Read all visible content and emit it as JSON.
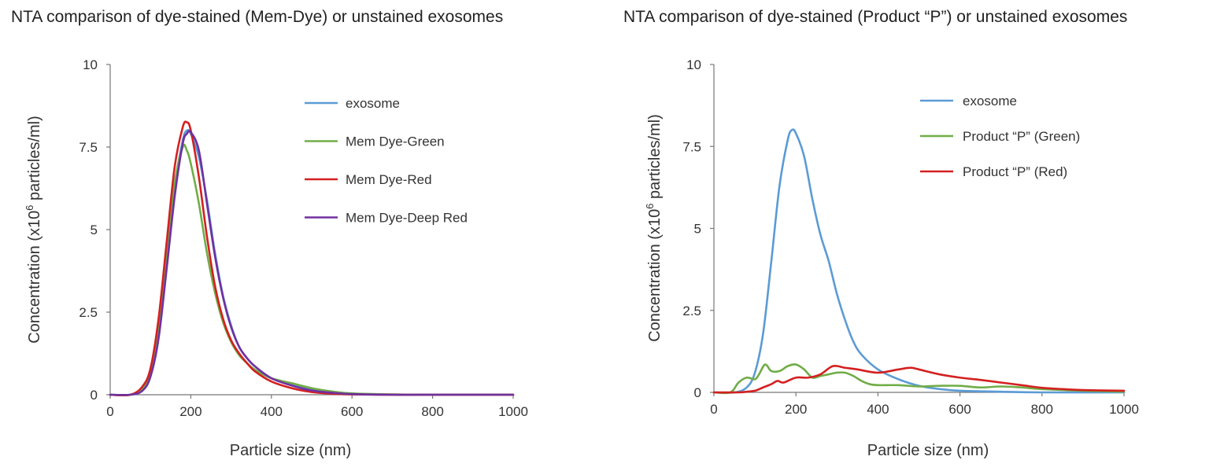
{
  "chart_data": [
    {
      "type": "line",
      "title": "NTA comparison of dye-stained (Mem-Dye) or unstained exosomes",
      "xlabel": "Particle size (nm)",
      "ylabel_parts": [
        "Concentration (x10",
        "6",
        " particles/ml)"
      ],
      "xlim": [
        0,
        1000
      ],
      "ylim": [
        0,
        10
      ],
      "xticks": [
        0,
        200,
        400,
        600,
        800,
        1000
      ],
      "xtick_labels": [
        "0",
        "200",
        "400",
        "600",
        "800",
        "1000"
      ],
      "yticks": [
        0,
        2.5,
        5,
        7.5,
        10
      ],
      "ytick_labels": [
        "0",
        "2.5",
        "5",
        "7.5",
        "10"
      ],
      "grid": false,
      "legend_position": "top-right",
      "series": [
        {
          "name": "exosome",
          "color": "#5b9bd5",
          "x": [
            0,
            50,
            80,
            100,
            120,
            140,
            160,
            180,
            190,
            200,
            220,
            240,
            260,
            280,
            300,
            320,
            340,
            360,
            400,
            450,
            500,
            550,
            600,
            700,
            800,
            1000
          ],
          "y": [
            0,
            0,
            0.15,
            0.6,
            1.8,
            4.0,
            6.3,
            7.7,
            8.0,
            7.9,
            7.2,
            5.9,
            4.3,
            3.0,
            2.1,
            1.45,
            1.1,
            0.85,
            0.5,
            0.3,
            0.15,
            0.08,
            0.03,
            0,
            0,
            0
          ]
        },
        {
          "name": "Mem Dye-Green",
          "color": "#70ad47",
          "x": [
            0,
            50,
            80,
            100,
            120,
            140,
            160,
            180,
            190,
            200,
            220,
            240,
            260,
            280,
            300,
            320,
            340,
            360,
            400,
            450,
            500,
            550,
            600,
            700,
            800,
            1000
          ],
          "y": [
            0,
            0,
            0.2,
            0.75,
            2.1,
            4.3,
            6.4,
            7.5,
            7.4,
            7.0,
            5.8,
            4.3,
            3.1,
            2.2,
            1.6,
            1.2,
            0.95,
            0.75,
            0.5,
            0.35,
            0.2,
            0.1,
            0.04,
            0.01,
            0,
            0
          ]
        },
        {
          "name": "Mem Dye-Red",
          "color": "#d42020",
          "x": [
            0,
            50,
            80,
            100,
            120,
            140,
            160,
            180,
            190,
            200,
            220,
            240,
            260,
            280,
            300,
            320,
            340,
            360,
            400,
            450,
            500,
            550,
            600,
            700,
            800,
            1000
          ],
          "y": [
            0,
            0,
            0.25,
            0.8,
            2.3,
            4.6,
            6.9,
            8.1,
            8.25,
            8.0,
            6.6,
            4.8,
            3.3,
            2.3,
            1.65,
            1.25,
            0.95,
            0.7,
            0.4,
            0.2,
            0.08,
            0.03,
            0.01,
            0,
            0,
            0
          ]
        },
        {
          "name": "Mem Dye-Deep Red",
          "color": "#7030a0",
          "x": [
            0,
            50,
            80,
            100,
            120,
            140,
            160,
            180,
            190,
            200,
            220,
            240,
            260,
            280,
            300,
            320,
            340,
            360,
            400,
            450,
            500,
            550,
            600,
            700,
            800,
            1000
          ],
          "y": [
            0,
            0,
            0.12,
            0.55,
            1.7,
            3.8,
            6.0,
            7.6,
            7.9,
            7.95,
            7.4,
            5.8,
            4.2,
            2.95,
            2.05,
            1.45,
            1.1,
            0.85,
            0.5,
            0.28,
            0.13,
            0.06,
            0.02,
            0,
            0,
            0
          ]
        }
      ]
    },
    {
      "type": "line",
      "title": "NTA comparison of dye-stained (Product “P”) or unstained exosomes",
      "xlabel": "Particle size (nm)",
      "ylabel_parts": [
        "Concentration (x10",
        "6",
        " particles/ml)"
      ],
      "xlim": [
        0,
        1000
      ],
      "ylim": [
        0,
        10
      ],
      "xticks": [
        0,
        200,
        400,
        600,
        800,
        1000
      ],
      "xtick_labels": [
        "0",
        "200",
        "400",
        "600",
        "800",
        "1000"
      ],
      "yticks": [
        0,
        2.5,
        5,
        7.5,
        10
      ],
      "ytick_labels": [
        "0",
        "2.5",
        "5",
        "7.5",
        "10"
      ],
      "grid": false,
      "legend_position": "top-right",
      "series": [
        {
          "name": "exosome",
          "color": "#5b9bd5",
          "x": [
            0,
            50,
            80,
            100,
            120,
            140,
            160,
            180,
            190,
            200,
            220,
            240,
            260,
            280,
            300,
            320,
            340,
            360,
            400,
            450,
            500,
            550,
            600,
            700,
            800,
            1000
          ],
          "y": [
            0,
            0,
            0.15,
            0.6,
            1.8,
            4.0,
            6.3,
            7.7,
            8.0,
            7.9,
            7.2,
            5.9,
            4.8,
            4.0,
            3.0,
            2.2,
            1.55,
            1.15,
            0.7,
            0.4,
            0.2,
            0.1,
            0.05,
            0.02,
            0,
            0
          ]
        },
        {
          "name": "Product “P” (Green)",
          "color": "#70ad47",
          "x": [
            0,
            40,
            60,
            80,
            100,
            110,
            125,
            140,
            160,
            180,
            200,
            220,
            240,
            260,
            280,
            300,
            320,
            340,
            360,
            380,
            400,
            450,
            500,
            550,
            600,
            650,
            700,
            750,
            800,
            900,
            1000
          ],
          "y": [
            0,
            0,
            0.3,
            0.45,
            0.4,
            0.55,
            0.85,
            0.65,
            0.65,
            0.8,
            0.85,
            0.7,
            0.45,
            0.5,
            0.55,
            0.6,
            0.6,
            0.5,
            0.35,
            0.25,
            0.22,
            0.22,
            0.18,
            0.2,
            0.2,
            0.15,
            0.18,
            0.15,
            0.1,
            0.05,
            0.02
          ]
        },
        {
          "name": "Product “P” (Red)",
          "color": "#d42020",
          "x": [
            0,
            60,
            80,
            100,
            120,
            140,
            155,
            170,
            200,
            230,
            260,
            290,
            320,
            350,
            400,
            450,
            480,
            500,
            550,
            600,
            650,
            700,
            750,
            800,
            850,
            900,
            1000
          ],
          "y": [
            0,
            0,
            0.02,
            0.05,
            0.15,
            0.25,
            0.35,
            0.3,
            0.45,
            0.45,
            0.55,
            0.8,
            0.75,
            0.7,
            0.6,
            0.7,
            0.75,
            0.7,
            0.55,
            0.45,
            0.38,
            0.3,
            0.22,
            0.14,
            0.1,
            0.07,
            0.05
          ]
        }
      ]
    }
  ]
}
